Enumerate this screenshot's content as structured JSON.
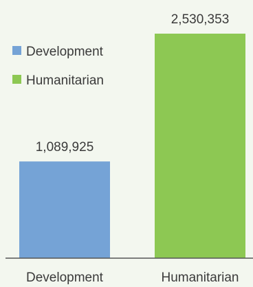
{
  "chart_data": {
    "type": "bar",
    "categories": [
      "Development",
      "Humanitarian"
    ],
    "values": [
      1089925,
      2530353
    ],
    "value_labels": [
      "1,089,925",
      "2,530,353"
    ],
    "colors": [
      "#75a3d6",
      "#8dc853"
    ],
    "legend": {
      "position": "top-left",
      "entries": [
        {
          "label": "Development",
          "color": "#75a3d6"
        },
        {
          "label": "Humanitarian",
          "color": "#8dc853"
        }
      ]
    },
    "title": "",
    "xlabel": "",
    "ylabel": "",
    "ylim": [
      0,
      2600000
    ],
    "grid": false
  }
}
